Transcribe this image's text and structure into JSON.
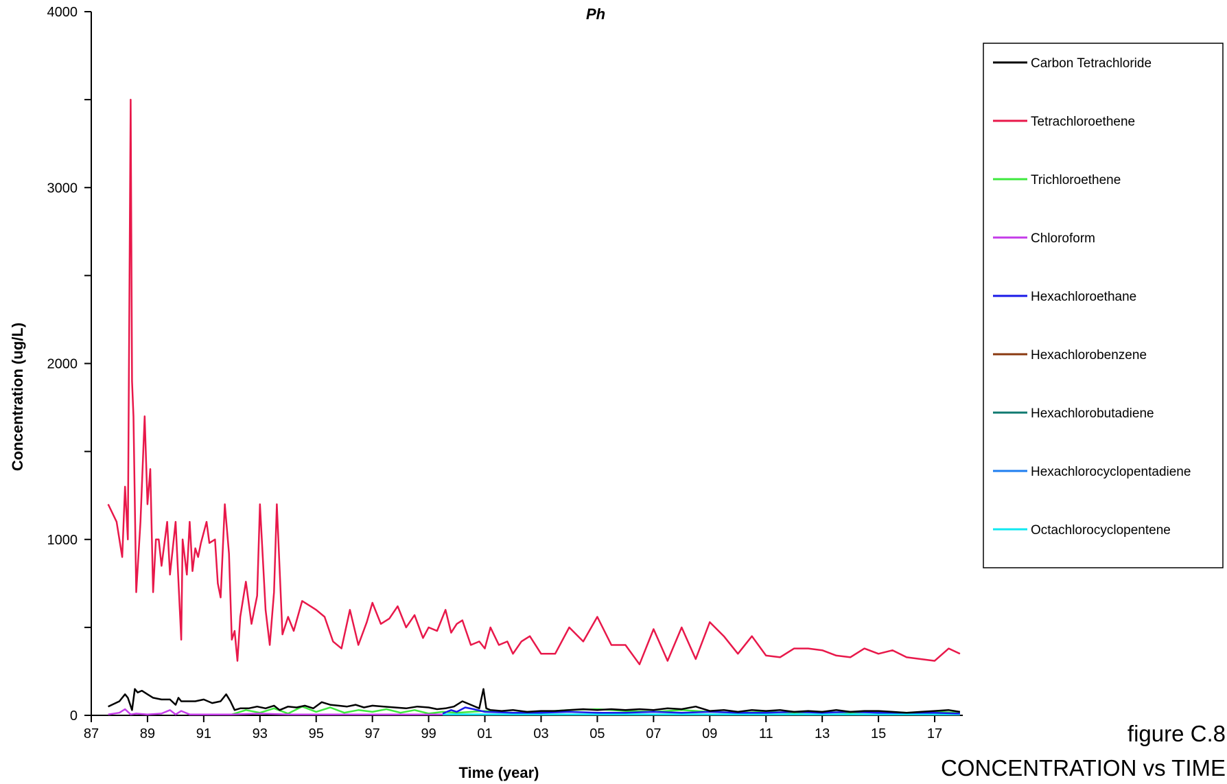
{
  "caption": {
    "figure": "figure C.8",
    "subtitle": "CONCENTRATION vs TIME"
  },
  "chart_data": {
    "type": "line",
    "title": "Ph",
    "xlabel": "Time (year)",
    "ylabel": "Concentration (ug/L)",
    "xlim": [
      1987,
      2018
    ],
    "ylim": [
      0,
      4000
    ],
    "x_ticks": [
      1987,
      1989,
      1991,
      1993,
      1995,
      1997,
      1999,
      2001,
      2003,
      2005,
      2007,
      2009,
      2011,
      2013,
      2015,
      2017
    ],
    "x_tick_labels": [
      "87",
      "89",
      "91",
      "93",
      "95",
      "97",
      "99",
      "01",
      "03",
      "05",
      "07",
      "09",
      "11",
      "13",
      "15",
      "17"
    ],
    "y_ticks": [
      0,
      1000,
      2000,
      3000,
      4000
    ],
    "y_tick_labels": [
      "0",
      "1000",
      "2000",
      "3000",
      "4000"
    ],
    "y_minor_step": 500,
    "grid": false,
    "legend_position": "right",
    "series": [
      {
        "name": "Carbon Tetrachloride",
        "color": "#000000",
        "x": [
          1987.6,
          1988.0,
          1988.2,
          1988.3,
          1988.45,
          1988.55,
          1988.65,
          1988.8,
          1989.0,
          1989.2,
          1989.5,
          1989.8,
          1990.0,
          1990.1,
          1990.2,
          1990.4,
          1990.7,
          1991.0,
          1991.3,
          1991.6,
          1991.8,
          1991.95,
          1992.1,
          1992.3,
          1992.6,
          1992.9,
          1993.2,
          1993.5,
          1993.7,
          1994.0,
          1994.3,
          1994.6,
          1994.9,
          1995.2,
          1995.5,
          1995.8,
          1996.1,
          1996.4,
          1996.7,
          1997.0,
          1997.4,
          1997.8,
          1998.2,
          1998.6,
          1999.0,
          1999.3,
          1999.6,
          1999.9,
          2000.2,
          2000.5,
          2000.8,
          2000.95,
          2001.05,
          2001.2,
          2001.6,
          2002.0,
          2002.5,
          2003.0,
          2003.5,
          2004.0,
          2004.5,
          2005.0,
          2005.5,
          2006.0,
          2006.5,
          2007.0,
          2007.5,
          2008.0,
          2008.5,
          2009.0,
          2009.5,
          2010.0,
          2010.5,
          2011.0,
          2011.5,
          2012.0,
          2012.5,
          2013.0,
          2013.5,
          2014.0,
          2014.5,
          2015.0,
          2015.5,
          2016.0,
          2016.5,
          2017.0,
          2017.5,
          2017.9
        ],
        "y": [
          50,
          80,
          120,
          100,
          30,
          150,
          130,
          140,
          120,
          100,
          90,
          90,
          60,
          100,
          80,
          80,
          80,
          90,
          70,
          80,
          120,
          80,
          30,
          40,
          40,
          50,
          40,
          55,
          30,
          50,
          45,
          55,
          40,
          75,
          60,
          55,
          50,
          60,
          45,
          55,
          50,
          45,
          40,
          50,
          45,
          35,
          40,
          50,
          80,
          60,
          40,
          150,
          40,
          30,
          25,
          30,
          20,
          25,
          25,
          30,
          35,
          30,
          35,
          30,
          35,
          30,
          40,
          35,
          50,
          25,
          30,
          20,
          30,
          25,
          30,
          20,
          25,
          20,
          30,
          20,
          25,
          25,
          20,
          15,
          20,
          25,
          30,
          20
        ]
      },
      {
        "name": "Tetrachloroethene",
        "color": "#e8184a",
        "x": [
          1987.6,
          1987.9,
          1988.1,
          1988.2,
          1988.3,
          1988.4,
          1988.45,
          1988.5,
          1988.6,
          1988.75,
          1988.9,
          1989.0,
          1989.1,
          1989.2,
          1989.3,
          1989.4,
          1989.5,
          1989.7,
          1989.8,
          1990.0,
          1990.2,
          1990.25,
          1990.4,
          1990.5,
          1990.6,
          1990.7,
          1990.8,
          1990.9,
          1991.1,
          1991.2,
          1991.4,
          1991.5,
          1991.6,
          1991.75,
          1991.9,
          1992.0,
          1992.1,
          1992.2,
          1992.3,
          1992.5,
          1992.7,
          1992.9,
          1993.0,
          1993.2,
          1993.35,
          1993.5,
          1993.6,
          1993.8,
          1994.0,
          1994.2,
          1994.5,
          1994.8,
          1995.0,
          1995.3,
          1995.6,
          1995.9,
          1996.2,
          1996.5,
          1996.8,
          1997.0,
          1997.3,
          1997.6,
          1997.9,
          1998.2,
          1998.5,
          1998.8,
          1999.0,
          1999.3,
          1999.6,
          1999.8,
          2000.0,
          2000.2,
          2000.5,
          2000.8,
          2001.0,
          2001.2,
          2001.5,
          2001.8,
          2002.0,
          2002.3,
          2002.6,
          2003.0,
          2003.5,
          2004.0,
          2004.5,
          2005.0,
          2005.5,
          2006.0,
          2006.5,
          2007.0,
          2007.5,
          2008.0,
          2008.5,
          2009.0,
          2009.5,
          2010.0,
          2010.5,
          2011.0,
          2011.5,
          2012.0,
          2012.5,
          2013.0,
          2013.5,
          2014.0,
          2014.5,
          2015.0,
          2015.5,
          2016.0,
          2016.5,
          2017.0,
          2017.5,
          2017.9
        ],
        "y": [
          1200,
          1100,
          900,
          1300,
          1000,
          3500,
          1900,
          1700,
          700,
          1100,
          1700,
          1200,
          1400,
          700,
          1000,
          1000,
          850,
          1100,
          800,
          1100,
          430,
          1000,
          800,
          1100,
          820,
          950,
          900,
          980,
          1100,
          980,
          1000,
          750,
          670,
          1200,
          920,
          430,
          480,
          310,
          560,
          760,
          520,
          680,
          1200,
          600,
          400,
          700,
          1200,
          460,
          560,
          480,
          650,
          620,
          600,
          560,
          420,
          380,
          600,
          400,
          530,
          640,
          520,
          550,
          620,
          500,
          570,
          440,
          500,
          480,
          600,
          470,
          520,
          540,
          400,
          420,
          380,
          500,
          400,
          420,
          350,
          420,
          450,
          350,
          350,
          500,
          420,
          560,
          400,
          400,
          290,
          490,
          310,
          500,
          320,
          530,
          450,
          350,
          450,
          340,
          330,
          380,
          380,
          370,
          340,
          330,
          380,
          350,
          370,
          330,
          320,
          310,
          380,
          350
        ]
      },
      {
        "name": "Trichloroethene",
        "color": "#3ee83e",
        "x": [
          1992.0,
          1992.5,
          1993.0,
          1993.5,
          1994.0,
          1994.5,
          1995.0,
          1995.5,
          1996.0,
          1996.5,
          1997.0,
          1997.5,
          1998.0,
          1998.5,
          1999.0,
          1999.5,
          2000.0,
          2001.0,
          2002.0,
          2003.0,
          2004.0,
          2005.0,
          2006.0,
          2007.0,
          2008.0,
          2009.0,
          2010.0,
          2011.0,
          2012.0,
          2013.0,
          2014.0,
          2015.0,
          2016.0,
          2017.0,
          2017.9
        ],
        "y": [
          5,
          30,
          15,
          40,
          10,
          50,
          20,
          45,
          15,
          30,
          20,
          35,
          15,
          30,
          10,
          20,
          15,
          25,
          15,
          20,
          30,
          35,
          25,
          20,
          30,
          20,
          15,
          20,
          15,
          20,
          15,
          20,
          15,
          20,
          15
        ]
      },
      {
        "name": "Chloroform",
        "color": "#c43ce8",
        "x": [
          1987.6,
          1988.0,
          1988.2,
          1988.4,
          1988.6,
          1989.0,
          1989.5,
          1989.8,
          1990.0,
          1990.2,
          1990.5,
          1991.0,
          1992.0,
          1993.0,
          1994.0,
          1995.0,
          1996.0,
          1997.0,
          1998.0,
          1999.0,
          2000.0,
          2001.0,
          2003.0,
          2005.0,
          2007.0,
          2009.0,
          2011.0,
          2013.0,
          2015.0,
          2017.0,
          2017.9
        ],
        "y": [
          5,
          15,
          35,
          5,
          10,
          5,
          10,
          30,
          5,
          25,
          5,
          5,
          5,
          10,
          5,
          5,
          5,
          5,
          5,
          5,
          5,
          5,
          5,
          5,
          5,
          5,
          5,
          5,
          5,
          5,
          5
        ]
      },
      {
        "name": "Hexachloroethane",
        "color": "#1a1ae8",
        "x": [
          1999.5,
          1999.8,
          2000.0,
          2000.3,
          2000.6,
          2001.0,
          2002.0,
          2003.0,
          2004.0,
          2005.0,
          2006.0,
          2007.0,
          2008.0,
          2009.0,
          2010.0,
          2011.0,
          2012.0,
          2013.0,
          2014.0,
          2015.0,
          2016.0,
          2017.0,
          2017.9
        ],
        "y": [
          10,
          30,
          20,
          45,
          35,
          20,
          15,
          15,
          20,
          15,
          15,
          20,
          15,
          20,
          15,
          15,
          20,
          15,
          20,
          15,
          15,
          15,
          10
        ]
      },
      {
        "name": "Hexachlorobenzene",
        "color": "#8a3a10",
        "x": [
          1999.5,
          2003.0,
          2008.0,
          2013.0,
          2017.9
        ],
        "y": [
          3,
          3,
          3,
          3,
          3
        ]
      },
      {
        "name": "Hexachlorobutadiene",
        "color": "#0f7a70",
        "x": [
          1999.5,
          2003.0,
          2008.0,
          2013.0,
          2017.9
        ],
        "y": [
          4,
          4,
          4,
          4,
          4
        ]
      },
      {
        "name": "Hexachlorocyclopentadiene",
        "color": "#1e7ef0",
        "x": [
          1999.5,
          2003.0,
          2008.0,
          2013.0,
          2017.9
        ],
        "y": [
          5,
          5,
          5,
          5,
          5
        ]
      },
      {
        "name": "Octachlorocyclopentene",
        "color": "#10e8f0",
        "x": [
          1999.5,
          2003.0,
          2008.0,
          2013.0,
          2017.9
        ],
        "y": [
          6,
          6,
          6,
          6,
          6
        ]
      }
    ]
  }
}
